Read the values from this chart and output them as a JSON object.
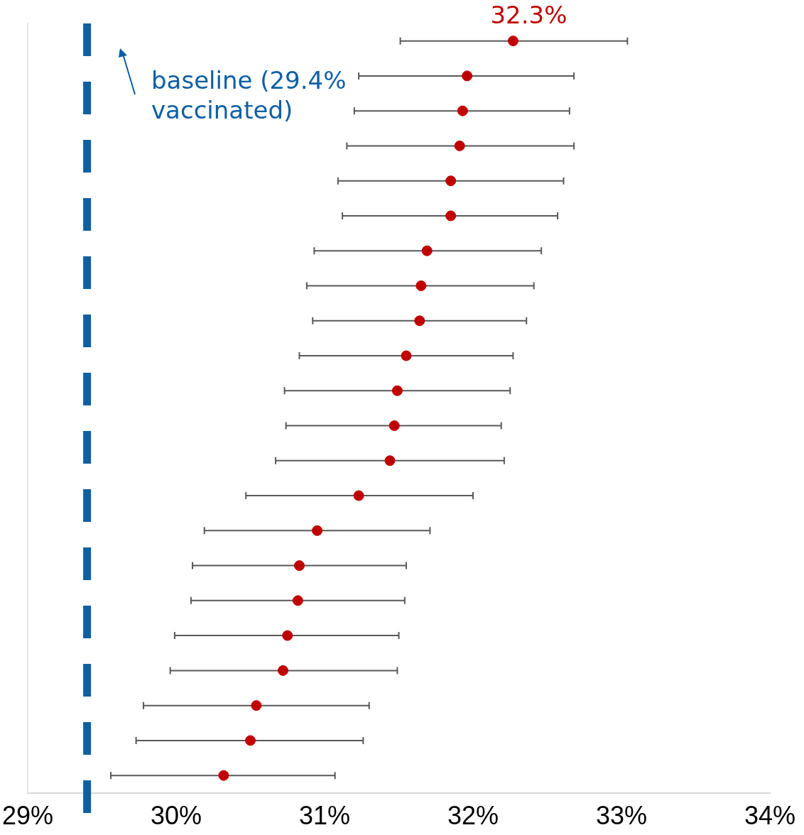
{
  "chart_data": {
    "type": "scatter",
    "orientation": "horizontal",
    "categories": [
      null,
      null,
      null,
      null,
      null,
      null,
      null,
      null,
      null,
      null,
      null,
      null,
      null,
      null,
      null,
      null,
      null,
      null,
      null,
      null,
      null,
      null
    ],
    "values": [
      32.27,
      31.96,
      31.93,
      31.91,
      31.85,
      31.85,
      31.69,
      31.65,
      31.64,
      31.55,
      31.49,
      31.47,
      31.44,
      31.23,
      30.95,
      30.83,
      30.82,
      30.75,
      30.72,
      30.54,
      30.5,
      30.32
    ],
    "errors": [
      [
        31.51,
        33.04
      ],
      [
        31.23,
        32.68
      ],
      [
        31.2,
        32.65
      ],
      [
        31.15,
        32.68
      ],
      [
        31.09,
        32.61
      ],
      [
        31.12,
        32.57
      ],
      [
        30.93,
        32.46
      ],
      [
        30.88,
        32.41
      ],
      [
        30.92,
        32.36
      ],
      [
        30.83,
        32.27
      ],
      [
        30.73,
        32.25
      ],
      [
        30.74,
        32.19
      ],
      [
        30.67,
        32.21
      ],
      [
        30.47,
        32.0
      ],
      [
        30.19,
        31.71
      ],
      [
        30.11,
        31.55
      ],
      [
        30.1,
        31.54
      ],
      [
        29.99,
        31.5
      ],
      [
        29.96,
        31.49
      ],
      [
        29.78,
        31.3
      ],
      [
        29.73,
        31.26
      ],
      [
        29.56,
        31.07
      ]
    ],
    "value_labels": [
      "32.3%",
      null,
      null,
      null,
      null,
      null,
      null,
      null,
      null,
      null,
      null,
      null,
      null,
      null,
      null,
      null,
      null,
      null,
      null,
      null,
      null,
      null
    ],
    "color": "#c00000",
    "marker": "circle",
    "xlim": [
      29,
      34
    ],
    "xticks": [
      {
        "value": 29,
        "label": "29%"
      },
      {
        "value": 30,
        "label": "30%"
      },
      {
        "value": 31,
        "label": "31%"
      },
      {
        "value": 32,
        "label": "32%"
      },
      {
        "value": 33,
        "label": "33%"
      },
      {
        "value": 34,
        "label": "34%"
      }
    ],
    "tick_labels": "x",
    "grid": false,
    "legend": false,
    "ref_lines": [
      {
        "axis": "x",
        "value": 29.4,
        "label": "baseline (29.4% vaccinated)",
        "color": "#0e5fa3",
        "line_style": "dashed"
      }
    ]
  }
}
